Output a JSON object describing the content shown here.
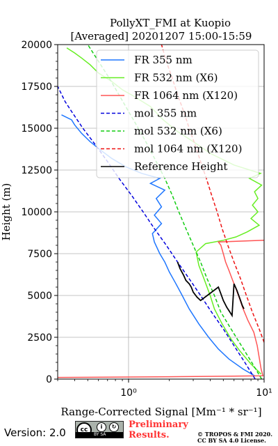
{
  "title": "PollyXT_FMI at Kuopio",
  "subtitle": "[Averaged] 20201207 15:00-15:59",
  "chart_data": {
    "type": "line",
    "xlabel": "Range-Corrected Signal [Mm⁻¹ * sr⁻¹]",
    "ylabel": "Height (m)",
    "xscale": "log",
    "xlim": [
      0.3,
      10
    ],
    "ylim": [
      0,
      20000
    ],
    "x_ticks": [
      {
        "value": 1,
        "label": "10⁰"
      },
      {
        "value": 10,
        "label": "10¹"
      }
    ],
    "y_ticks": [
      0,
      2500,
      5000,
      7500,
      10000,
      12500,
      15000,
      17500,
      20000
    ],
    "grid": true,
    "legend_position": "upper-right",
    "series": [
      {
        "name": "FR 355 nm",
        "color": "#1f77ff",
        "style": "solid",
        "points": [
          [
            8.5,
            200
          ],
          [
            7.0,
            600
          ],
          [
            5.5,
            1200
          ],
          [
            4.6,
            1800
          ],
          [
            3.9,
            2500
          ],
          [
            3.3,
            3300
          ],
          [
            2.8,
            4200
          ],
          [
            2.45,
            5100
          ],
          [
            2.2,
            5800
          ],
          [
            2.0,
            6400
          ],
          [
            1.85,
            7000
          ],
          [
            1.7,
            7500
          ],
          [
            1.55,
            8200
          ],
          [
            1.5,
            8700
          ],
          [
            1.75,
            9300
          ],
          [
            1.55,
            9800
          ],
          [
            1.75,
            10300
          ],
          [
            1.6,
            10800
          ],
          [
            1.85,
            11300
          ],
          [
            1.45,
            11700
          ],
          [
            1.7,
            12000
          ],
          [
            1.25,
            12300
          ],
          [
            0.95,
            12700
          ],
          [
            0.75,
            13200
          ],
          [
            0.62,
            13700
          ],
          [
            0.52,
            14200
          ],
          [
            0.45,
            14700
          ],
          [
            0.4,
            15200
          ],
          [
            0.38,
            15500
          ],
          [
            0.32,
            15800
          ]
        ]
      },
      {
        "name": "FR 532 nm (X6)",
        "color": "#66ee22",
        "style": "solid",
        "points": [
          [
            9.5,
            300
          ],
          [
            8.0,
            900
          ],
          [
            6.6,
            1700
          ],
          [
            5.7,
            2400
          ],
          [
            4.9,
            3300
          ],
          [
            4.3,
            4200
          ],
          [
            4.0,
            5000
          ],
          [
            3.6,
            6000
          ],
          [
            3.3,
            6800
          ],
          [
            3.15,
            7600
          ],
          [
            3.7,
            8100
          ],
          [
            5.0,
            8300
          ],
          [
            6.2,
            8500
          ],
          [
            7.5,
            8800
          ],
          [
            9.2,
            9200
          ],
          [
            8.0,
            9600
          ],
          [
            9.0,
            10000
          ],
          [
            8.2,
            10400
          ],
          [
            9.0,
            10800
          ],
          [
            8.5,
            11200
          ],
          [
            9.6,
            11600
          ],
          [
            7.8,
            12000
          ],
          [
            9.4,
            12300
          ],
          [
            6.0,
            12800
          ],
          [
            4.0,
            13500
          ],
          [
            3.0,
            14200
          ],
          [
            2.3,
            14800
          ],
          [
            1.8,
            15500
          ],
          [
            1.45,
            16300
          ],
          [
            1.1,
            16900
          ],
          [
            0.9,
            17300
          ],
          [
            0.75,
            17800
          ],
          [
            0.6,
            18300
          ],
          [
            0.52,
            18800
          ],
          [
            0.45,
            19200
          ],
          [
            0.4,
            19500
          ],
          [
            0.35,
            19800
          ]
        ]
      },
      {
        "name": "FR 1064 nm (X120)",
        "color": "#ff5555",
        "style": "solid",
        "points": [
          [
            0.3,
            100
          ],
          [
            2.0,
            140
          ],
          [
            6.0,
            180
          ],
          [
            9.8,
            200
          ],
          [
            9.5,
            600
          ],
          [
            9.2,
            1300
          ],
          [
            8.9,
            2000
          ],
          [
            8.4,
            2800
          ],
          [
            7.6,
            3500
          ],
          [
            7.0,
            4200
          ],
          [
            6.6,
            4800
          ],
          [
            6.2,
            5400
          ],
          [
            5.8,
            6000
          ],
          [
            5.5,
            6500
          ],
          [
            5.2,
            7000
          ],
          [
            5.0,
            7500
          ],
          [
            4.8,
            8000
          ],
          [
            4.6,
            8200
          ],
          [
            10,
            8300
          ]
        ]
      },
      {
        "name": "mol 355 nm",
        "color": "#0000dd",
        "style": "dashed",
        "points": [
          [
            8.6,
            0
          ],
          [
            7.2,
            1000
          ],
          [
            6.0,
            2000
          ],
          [
            5.0,
            3000
          ],
          [
            4.1,
            4000
          ],
          [
            3.4,
            5000
          ],
          [
            2.8,
            6000
          ],
          [
            2.3,
            7000
          ],
          [
            1.9,
            8000
          ],
          [
            1.55,
            9000
          ],
          [
            1.28,
            10000
          ],
          [
            1.05,
            11000
          ],
          [
            0.85,
            12000
          ],
          [
            0.7,
            13000
          ],
          [
            0.57,
            14000
          ],
          [
            0.46,
            15000
          ],
          [
            0.38,
            16000
          ],
          [
            0.34,
            16600
          ],
          [
            0.3,
            17500
          ]
        ]
      },
      {
        "name": "mol 532 nm (X6)",
        "color": "#11cc11",
        "style": "dashed",
        "points": [
          [
            9.6,
            0
          ],
          [
            8.1,
            1000
          ],
          [
            6.8,
            2000
          ],
          [
            5.7,
            3000
          ],
          [
            4.8,
            4000
          ],
          [
            4.3,
            5000
          ],
          [
            3.8,
            6000
          ],
          [
            3.4,
            7000
          ],
          [
            3.0,
            8000
          ],
          [
            2.65,
            9000
          ],
          [
            2.35,
            10000
          ],
          [
            2.1,
            11000
          ],
          [
            1.85,
            12000
          ],
          [
            1.6,
            13000
          ],
          [
            1.38,
            14000
          ],
          [
            1.18,
            15000
          ],
          [
            1.0,
            16000
          ],
          [
            0.85,
            17000
          ],
          [
            0.72,
            18000
          ],
          [
            0.6,
            19000
          ],
          [
            0.5,
            20000
          ]
        ]
      },
      {
        "name": "mol 1064 nm (X120)",
        "color": "#ee1111",
        "style": "dashed",
        "points": [
          [
            10,
            2200
          ],
          [
            9.2,
            3000
          ],
          [
            8.2,
            4000
          ],
          [
            7.4,
            5000
          ],
          [
            6.7,
            6000
          ],
          [
            6.0,
            7000
          ],
          [
            5.4,
            8000
          ],
          [
            4.9,
            9000
          ],
          [
            4.5,
            10000
          ],
          [
            4.1,
            11000
          ],
          [
            3.75,
            12000
          ],
          [
            3.4,
            13000
          ],
          [
            3.1,
            14000
          ],
          [
            2.8,
            15000
          ],
          [
            2.55,
            16000
          ],
          [
            2.3,
            17000
          ],
          [
            2.1,
            18000
          ],
          [
            1.9,
            19000
          ],
          [
            1.75,
            20000
          ]
        ]
      },
      {
        "name": "Reference Height",
        "color": "#000000",
        "style": "solid",
        "points": [
          [
            2.3,
            7000
          ],
          [
            2.4,
            6600
          ],
          [
            2.55,
            6200
          ],
          [
            2.65,
            5900
          ],
          [
            2.8,
            5700
          ],
          [
            2.9,
            5500
          ],
          [
            3.0,
            5200
          ],
          [
            3.2,
            4900
          ],
          [
            3.4,
            4700
          ],
          [
            4.6,
            5500
          ],
          [
            4.8,
            5100
          ],
          [
            5.0,
            4700
          ],
          [
            5.3,
            4300
          ],
          [
            5.6,
            4000
          ],
          [
            5.8,
            3800
          ],
          [
            6.0,
            5700
          ],
          [
            6.3,
            5300
          ],
          [
            6.5,
            5000
          ],
          [
            6.7,
            4700
          ],
          [
            6.9,
            4400
          ],
          [
            7.1,
            4200
          ]
        ]
      }
    ]
  },
  "footer": {
    "version": "Version: 2.0",
    "license_badge_text": "BY SA",
    "cc_logo": "cc",
    "attribution_icon": "i",
    "sharealike_icon": "↻",
    "preliminary_line1": "Preliminary",
    "preliminary_line2": "Results.",
    "copyright_line1": "© TROPOS & FMI 2020.",
    "copyright_line2": "CC BY SA 4.0 License."
  }
}
